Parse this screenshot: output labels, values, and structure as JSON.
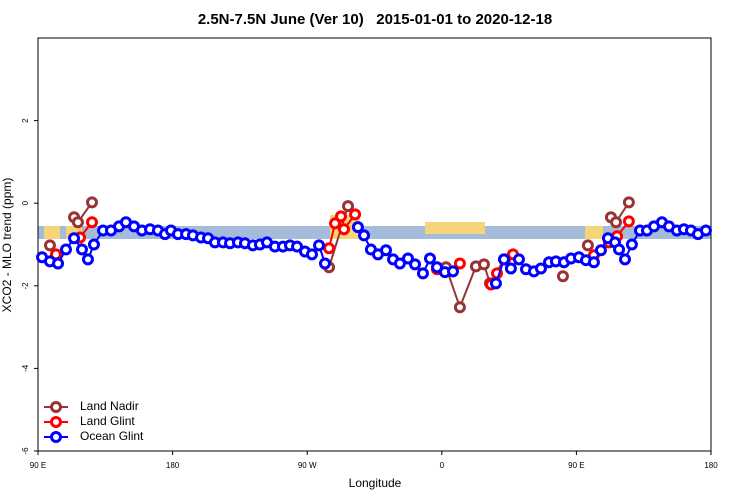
{
  "chart_data": {
    "type": "line",
    "title": "2.5N-7.5N June (Ver 10)   2015-01-01 to 2020-12-18",
    "xlabel": "Longitude",
    "ylabel": "XCO2 - MLO trend (ppm)",
    "xlim": [
      90,
      540
    ],
    "ylim": [
      -6,
      4
    ],
    "xticks": [
      {
        "value": 90,
        "label": "90 E"
      },
      180,
      {
        "value": 270,
        "label": "90 W"
      },
      {
        "value": 360,
        "label": "0"
      },
      {
        "value": 450,
        "label": "90 E"
      },
      {
        "value": 540,
        "label": "180"
      }
    ],
    "yticks": [
      -6,
      -4,
      -2,
      0,
      2
    ],
    "legend": "bottom-left",
    "series": [
      {
        "name": "Land Nadir",
        "color": "#993333",
        "x": [
          98.0,
          114.1,
          116.7,
          126.1,
          284.6,
          297.3,
          362.8,
          372.1,
          382.8,
          388.2,
          392.2,
          401.6,
          441.0,
          457.7,
          473.1,
          476.5,
          485.1
        ],
        "values": [
          -1.02,
          -0.34,
          -0.46,
          0.02,
          -1.55,
          -0.07,
          -1.55,
          -2.52,
          -1.53,
          -1.48,
          -1.94,
          -1.36,
          -1.77,
          -1.02,
          -0.34,
          -0.46,
          0.02
        ]
      },
      {
        "name": "Land Glint",
        "color": "#ff0000",
        "x": [
          102.0,
          118.1,
          126.1,
          284.6,
          288.6,
          292.6,
          294.6,
          302.0,
          356.8,
          372.1,
          392.9,
          396.9,
          402.3,
          407.6,
          461.7,
          471.8,
          477.2,
          485.1
        ],
        "values": [
          -1.24,
          -0.83,
          -0.46,
          -1.09,
          -0.49,
          -0.32,
          -0.63,
          -0.27,
          -1.6,
          -1.46,
          -1.97,
          -1.7,
          -1.36,
          -1.24,
          -1.26,
          -0.95,
          -0.8,
          -0.44
        ]
      },
      {
        "name": "Ocean Glint",
        "color": "#0000ff",
        "x": [
          92.7,
          98.0,
          103.4,
          108.7,
          114.1,
          119.4,
          123.4,
          127.4,
          133.5,
          138.8,
          144.2,
          148.8,
          154.2,
          159.5,
          164.9,
          170.2,
          174.9,
          178.9,
          183.6,
          189.0,
          193.6,
          199.0,
          203.7,
          208.3,
          213.7,
          218.4,
          223.7,
          228.4,
          233.7,
          238.4,
          243.1,
          248.4,
          253.8,
          258.5,
          263.2,
          268.5,
          273.2,
          277.9,
          281.9,
          303.9,
          308.0,
          312.6,
          317.3,
          322.7,
          327.4,
          332.0,
          337.4,
          342.1,
          347.4,
          352.1,
          356.8,
          362.1,
          367.5,
          396.2,
          401.6,
          406.2,
          411.6,
          416.3,
          421.6,
          426.3,
          431.7,
          436.3,
          441.7,
          446.4,
          451.7,
          456.4,
          461.7,
          466.4,
          471.1,
          475.8,
          478.5,
          482.5,
          487.1,
          492.5,
          497.2,
          501.9,
          507.2,
          511.9,
          517.2,
          521.9,
          526.6,
          531.3,
          536.6
        ],
        "values": [
          -1.31,
          -1.41,
          -1.46,
          -1.12,
          -0.85,
          -1.12,
          -1.36,
          -1.0,
          -0.66,
          -0.66,
          -0.56,
          -0.46,
          -0.56,
          -0.66,
          -0.63,
          -0.66,
          -0.75,
          -0.66,
          -0.75,
          -0.75,
          -0.78,
          -0.83,
          -0.85,
          -0.95,
          -0.95,
          -0.97,
          -0.95,
          -0.97,
          -1.02,
          -1.0,
          -0.95,
          -1.05,
          -1.05,
          -1.02,
          -1.05,
          -1.17,
          -1.24,
          -1.02,
          -1.46,
          -0.58,
          -0.78,
          -1.12,
          -1.24,
          -1.14,
          -1.36,
          -1.46,
          -1.34,
          -1.48,
          -1.7,
          -1.34,
          -1.55,
          -1.67,
          -1.65,
          -1.94,
          -1.36,
          -1.58,
          -1.36,
          -1.6,
          -1.65,
          -1.58,
          -1.43,
          -1.41,
          -1.43,
          -1.34,
          -1.31,
          -1.38,
          -1.43,
          -1.14,
          -0.85,
          -0.95,
          -1.12,
          -1.36,
          -1.0,
          -0.66,
          -0.66,
          -0.56,
          -0.46,
          -0.56,
          -0.66,
          -0.63,
          -0.66,
          -0.75,
          -0.66
        ]
      }
    ]
  }
}
